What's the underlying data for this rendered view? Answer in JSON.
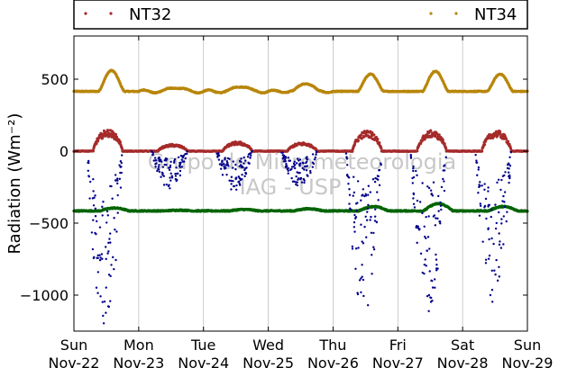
{
  "chart_data": {
    "type": "scatter",
    "ylabel": "Radiation (Wm⁻²)",
    "ylim": [
      -1250,
      800
    ],
    "xlim": [
      0,
      7
    ],
    "yticks": [
      500,
      0,
      -500,
      -1000
    ],
    "ytick_labels": [
      "500",
      "0",
      "−500",
      "−1000"
    ],
    "xticks": [
      0,
      1,
      2,
      3,
      4,
      5,
      6,
      7
    ],
    "xtick_labels": [
      [
        "Sun",
        "Nov-22"
      ],
      [
        "Mon",
        "Nov-23"
      ],
      [
        "Tue",
        "Nov-24"
      ],
      [
        "Wed",
        "Nov-25"
      ],
      [
        "Thu",
        "Nov-26"
      ],
      [
        "Fri",
        "Nov-27"
      ],
      [
        "Sat",
        "Nov-28"
      ],
      [
        "Sun",
        "Nov-29"
      ]
    ],
    "grid": "vertical",
    "legend": {
      "placement": "top",
      "entries": [
        {
          "name": "NT32",
          "color": "#a52a2a"
        },
        {
          "name": "NT34",
          "color": "#b8860b"
        }
      ]
    },
    "series": [
      {
        "key": "nt34",
        "color": "#b8860b",
        "baseline": 415,
        "day_peaks": [
          560,
          445,
          455,
          475,
          535,
          555,
          535
        ],
        "day_ripple": [
          0,
          10,
          10,
          8,
          0,
          0,
          0
        ]
      },
      {
        "key": "nt32",
        "color": "#a52a2a",
        "baseline": 0,
        "day_peaks": [
          125,
          40,
          55,
          50,
          120,
          120,
          120
        ]
      },
      {
        "key": "green",
        "color": "#006400",
        "baseline": -415,
        "day_offsets": [
          20,
          5,
          10,
          15,
          30,
          50,
          30
        ]
      },
      {
        "key": "blue",
        "color": "#00008b",
        "baseline": 0,
        "day_minima": [
          -1220,
          -260,
          -280,
          -250,
          -1160,
          -1130,
          -1060
        ]
      }
    ],
    "watermark": [
      "Grupo de Micrometeorologia",
      "IAG - USP"
    ]
  }
}
